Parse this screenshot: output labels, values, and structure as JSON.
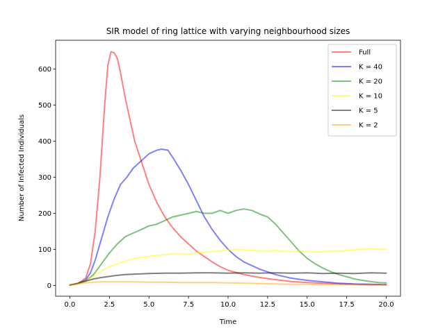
{
  "chart_data": {
    "type": "line",
    "title": "SIR model of ring lattice with varying neighbourhood sizes",
    "xlabel": "Time",
    "ylabel": "Number of Infected Individuals",
    "xlim": [
      -0.9,
      20.9
    ],
    "ylim": [
      -30,
      680
    ],
    "x_ticks": [
      "0.0",
      "2.5",
      "5.0",
      "7.5",
      "10.0",
      "12.5",
      "15.0",
      "17.5",
      "20.0"
    ],
    "y_ticks": [
      "0",
      "100",
      "200",
      "300",
      "400",
      "500",
      "600"
    ],
    "x_tick_values": [
      0,
      2.5,
      5,
      7.5,
      10,
      12.5,
      15,
      17.5,
      20
    ],
    "y_tick_values": [
      0,
      100,
      200,
      300,
      400,
      500,
      600
    ],
    "grid": false,
    "legend_position": "top-right",
    "series": [
      {
        "name": "Full",
        "color": "#ff0000",
        "points": [
          [
            0,
            1
          ],
          [
            0.5,
            5
          ],
          [
            1,
            20
          ],
          [
            1.3,
            60
          ],
          [
            1.6,
            150
          ],
          [
            1.9,
            300
          ],
          [
            2.2,
            500
          ],
          [
            2.4,
            610
          ],
          [
            2.6,
            648
          ],
          [
            2.8,
            645
          ],
          [
            3.0,
            630
          ],
          [
            3.2,
            590
          ],
          [
            3.5,
            520
          ],
          [
            3.8,
            460
          ],
          [
            4.1,
            400
          ],
          [
            4.4,
            360
          ],
          [
            4.7,
            320
          ],
          [
            5.0,
            280
          ],
          [
            5.5,
            230
          ],
          [
            6.0,
            190
          ],
          [
            6.5,
            160
          ],
          [
            7.0,
            135
          ],
          [
            7.5,
            115
          ],
          [
            8.0,
            95
          ],
          [
            8.5,
            80
          ],
          [
            9.0,
            65
          ],
          [
            9.5,
            52
          ],
          [
            10.0,
            42
          ],
          [
            11.0,
            30
          ],
          [
            12.0,
            22
          ],
          [
            13.0,
            16
          ],
          [
            14.0,
            11
          ],
          [
            15.0,
            8
          ],
          [
            16.0,
            6
          ],
          [
            17.0,
            4
          ],
          [
            18.0,
            3
          ],
          [
            19.0,
            2
          ],
          [
            20.0,
            2
          ]
        ]
      },
      {
        "name": "K = 40",
        "color": "#0000ff",
        "points": [
          [
            0,
            1
          ],
          [
            0.5,
            5
          ],
          [
            1.0,
            15
          ],
          [
            1.3,
            35
          ],
          [
            1.6,
            70
          ],
          [
            2.0,
            130
          ],
          [
            2.4,
            190
          ],
          [
            2.8,
            240
          ],
          [
            3.2,
            280
          ],
          [
            3.6,
            300
          ],
          [
            4.0,
            325
          ],
          [
            4.5,
            345
          ],
          [
            5.0,
            365
          ],
          [
            5.5,
            375
          ],
          [
            5.8,
            378
          ],
          [
            6.2,
            375
          ],
          [
            6.5,
            355
          ],
          [
            7.0,
            320
          ],
          [
            7.5,
            280
          ],
          [
            8.0,
            235
          ],
          [
            8.5,
            190
          ],
          [
            9.0,
            155
          ],
          [
            9.5,
            125
          ],
          [
            10.0,
            100
          ],
          [
            10.5,
            80
          ],
          [
            11.0,
            65
          ],
          [
            12.0,
            45
          ],
          [
            13.0,
            30
          ],
          [
            14.0,
            20
          ],
          [
            15.0,
            14
          ],
          [
            16.0,
            10
          ],
          [
            17.0,
            6
          ],
          [
            18.0,
            4
          ],
          [
            19.0,
            3
          ],
          [
            20.0,
            2
          ]
        ]
      },
      {
        "name": "K = 20",
        "color": "#008000",
        "points": [
          [
            0,
            1
          ],
          [
            0.5,
            5
          ],
          [
            1.0,
            12
          ],
          [
            1.5,
            30
          ],
          [
            2.0,
            60
          ],
          [
            2.5,
            90
          ],
          [
            3.0,
            115
          ],
          [
            3.5,
            135
          ],
          [
            4.0,
            145
          ],
          [
            4.5,
            155
          ],
          [
            5.0,
            165
          ],
          [
            5.5,
            170
          ],
          [
            6.0,
            180
          ],
          [
            6.5,
            190
          ],
          [
            7.0,
            195
          ],
          [
            7.5,
            200
          ],
          [
            8.0,
            205
          ],
          [
            8.5,
            200
          ],
          [
            9.0,
            200
          ],
          [
            9.5,
            208
          ],
          [
            10.0,
            200
          ],
          [
            10.5,
            208
          ],
          [
            11.0,
            212
          ],
          [
            11.5,
            208
          ],
          [
            12.0,
            198
          ],
          [
            12.5,
            190
          ],
          [
            13.0,
            170
          ],
          [
            13.5,
            145
          ],
          [
            14.0,
            120
          ],
          [
            14.5,
            95
          ],
          [
            15.0,
            75
          ],
          [
            15.5,
            60
          ],
          [
            16.0,
            48
          ],
          [
            16.5,
            38
          ],
          [
            17.0,
            30
          ],
          [
            17.5,
            24
          ],
          [
            18.0,
            18
          ],
          [
            18.5,
            14
          ],
          [
            19.0,
            11
          ],
          [
            19.5,
            8
          ],
          [
            20.0,
            7
          ]
        ]
      },
      {
        "name": "K = 10",
        "color": "#ffff00",
        "points": [
          [
            0,
            1
          ],
          [
            0.5,
            5
          ],
          [
            1.0,
            12
          ],
          [
            1.5,
            25
          ],
          [
            2.0,
            40
          ],
          [
            2.5,
            52
          ],
          [
            3.0,
            60
          ],
          [
            3.5,
            68
          ],
          [
            4.0,
            74
          ],
          [
            4.5,
            78
          ],
          [
            5.0,
            80
          ],
          [
            5.5,
            83
          ],
          [
            6.0,
            85
          ],
          [
            6.5,
            88
          ],
          [
            7.0,
            88
          ],
          [
            7.5,
            86
          ],
          [
            8.0,
            90
          ],
          [
            8.5,
            92
          ],
          [
            9.0,
            94
          ],
          [
            9.5,
            96
          ],
          [
            10.0,
            98
          ],
          [
            10.5,
            100
          ],
          [
            11.0,
            99
          ],
          [
            11.5,
            97
          ],
          [
            12.0,
            96
          ],
          [
            12.5,
            95
          ],
          [
            13.0,
            97
          ],
          [
            13.5,
            95
          ],
          [
            14.0,
            94
          ],
          [
            14.5,
            96
          ],
          [
            15.0,
            95
          ],
          [
            15.5,
            93
          ],
          [
            16.0,
            94
          ],
          [
            16.5,
            96
          ],
          [
            17.0,
            95
          ],
          [
            17.5,
            97
          ],
          [
            18.0,
            99
          ],
          [
            18.5,
            101
          ],
          [
            19.0,
            102
          ],
          [
            19.5,
            100
          ],
          [
            20.0,
            101
          ]
        ]
      },
      {
        "name": "K = 5",
        "color": "#000000",
        "points": [
          [
            0,
            1
          ],
          [
            0.5,
            6
          ],
          [
            1.0,
            12
          ],
          [
            1.5,
            18
          ],
          [
            2.0,
            22
          ],
          [
            2.5,
            25
          ],
          [
            3.0,
            28
          ],
          [
            3.5,
            30
          ],
          [
            4.0,
            31
          ],
          [
            4.5,
            32
          ],
          [
            5.0,
            33
          ],
          [
            6.0,
            34
          ],
          [
            7.0,
            34
          ],
          [
            8.0,
            35
          ],
          [
            9.0,
            35
          ],
          [
            10.0,
            34
          ],
          [
            11.0,
            35
          ],
          [
            12.0,
            34
          ],
          [
            13.0,
            35
          ],
          [
            14.0,
            34
          ],
          [
            15.0,
            35
          ],
          [
            16.0,
            33
          ],
          [
            17.0,
            34
          ],
          [
            18.0,
            33
          ],
          [
            19.0,
            35
          ],
          [
            20.0,
            34
          ]
        ]
      },
      {
        "name": "K = 2",
        "color": "#ffa500",
        "points": [
          [
            0,
            1
          ],
          [
            0.5,
            4
          ],
          [
            1.0,
            7
          ],
          [
            1.5,
            9
          ],
          [
            2.0,
            10
          ],
          [
            2.5,
            10
          ],
          [
            3.0,
            10
          ],
          [
            4.0,
            10
          ],
          [
            5.0,
            9
          ],
          [
            6.0,
            9
          ],
          [
            7.0,
            8
          ],
          [
            8.0,
            8
          ],
          [
            9.0,
            8
          ],
          [
            10.0,
            7
          ],
          [
            11.0,
            6
          ],
          [
            12.0,
            5
          ],
          [
            13.0,
            4
          ],
          [
            14.0,
            3
          ],
          [
            15.0,
            3
          ],
          [
            16.0,
            2
          ],
          [
            17.0,
            2
          ],
          [
            18.0,
            2
          ],
          [
            19.0,
            1
          ],
          [
            20.0,
            1
          ]
        ]
      }
    ]
  }
}
